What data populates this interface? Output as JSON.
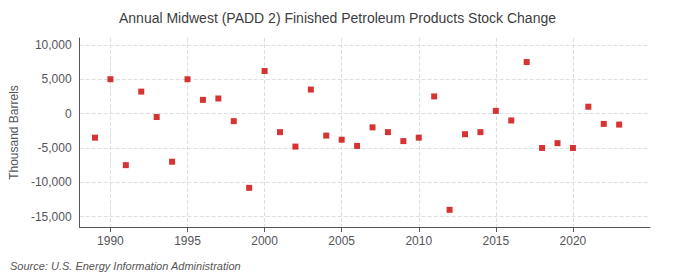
{
  "chart_data": {
    "type": "scatter",
    "title": "Annual Midwest (PADD 2) Finished Petroleum Products Stock Change",
    "ylabel": "Thousand Barrels",
    "annotations": [
      "Source: U.S. Energy Information Administration"
    ],
    "x": [
      1989,
      1990,
      1991,
      1992,
      1993,
      1994,
      1995,
      1996,
      1997,
      1998,
      1999,
      2000,
      2001,
      2002,
      2003,
      2004,
      2005,
      2006,
      2007,
      2008,
      2009,
      2010,
      2011,
      2012,
      2013,
      2014,
      2015,
      2016,
      2017,
      2018,
      2019,
      2020,
      2021,
      2022,
      2023
    ],
    "values": [
      -3500,
      5000,
      -7500,
      3200,
      -500,
      -7000,
      5000,
      2000,
      2200,
      -1100,
      -10800,
      6200,
      -2700,
      -4800,
      3500,
      -3200,
      -3800,
      -4700,
      -2000,
      -2700,
      -4000,
      -3500,
      2500,
      -14000,
      -3000,
      -2700,
      400,
      -1000,
      7500,
      -5000,
      -4300,
      -5000,
      1000,
      -1500,
      -1600
    ],
    "color": "#cc0000",
    "marker": "square",
    "xlim": [
      1988.0,
      2025.0
    ],
    "xticks": [
      1990,
      1995,
      2000,
      2005,
      2010,
      2015,
      2020
    ],
    "ylim": [
      -16500,
      11000
    ],
    "yticks": [
      {
        "value": -15000,
        "label": "-15,000"
      },
      {
        "value": -10000,
        "label": "-10,000"
      },
      {
        "value": -5000,
        "label": "-5,000"
      },
      0,
      {
        "value": 5000,
        "label": "5,000"
      },
      {
        "value": 10000,
        "label": "10,000"
      }
    ],
    "grid": true
  }
}
